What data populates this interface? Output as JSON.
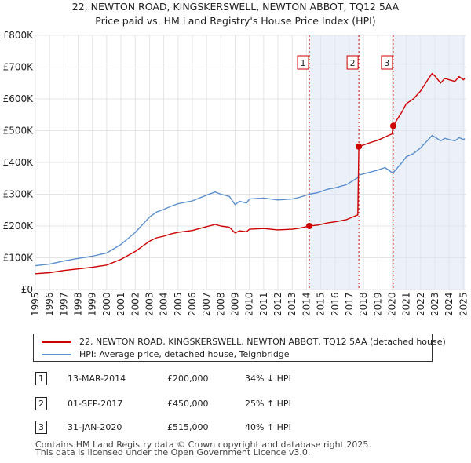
{
  "chart_data": {
    "type": "line",
    "title": "22, NEWTON ROAD, KINGSKERSWELL, NEWTON ABBOT, TQ12 5AA",
    "subtitle": "Price paid vs. HM Land Registry's House Price Index (HPI)",
    "xlabel": "",
    "ylabel": "",
    "xlim": [
      1995,
      2025.2
    ],
    "ylim": [
      0,
      800000
    ],
    "y_ticks": [
      {
        "value": 0,
        "label": "£0"
      },
      {
        "value": 100000,
        "label": "£100K"
      },
      {
        "value": 200000,
        "label": "£200K"
      },
      {
        "value": 300000,
        "label": "£300K"
      },
      {
        "value": 400000,
        "label": "£400K"
      },
      {
        "value": 500000,
        "label": "£500K"
      },
      {
        "value": 600000,
        "label": "£600K"
      },
      {
        "value": 700000,
        "label": "£700K"
      },
      {
        "value": 800000,
        "label": "£800K"
      }
    ],
    "x_ticks": [
      "1995",
      "1996",
      "1997",
      "1998",
      "1999",
      "2000",
      "2001",
      "2002",
      "2003",
      "2004",
      "2005",
      "2006",
      "2007",
      "2008",
      "2009",
      "2010",
      "2011",
      "2012",
      "2013",
      "2014",
      "2015",
      "2016",
      "2017",
      "2018",
      "2019",
      "2020",
      "2021",
      "2022",
      "2023",
      "2024",
      "2025"
    ],
    "grid": true,
    "series": [
      {
        "name": "22, NEWTON ROAD, KINGSKERSWELL, NEWTON ABBOT, TQ12 5AA (detached house)",
        "color": "#cc0000",
        "x": [
          1995,
          1996,
          1997,
          1998,
          1999,
          2000,
          2001,
          2002,
          2003,
          2003.5,
          2004,
          2004.5,
          2005,
          2006,
          2007,
          2007.6,
          2008,
          2008.6,
          2009,
          2009.3,
          2009.8,
          2010,
          2011,
          2012,
          2013,
          2013.5,
          2014.2,
          2014.8,
          2015.5,
          2016,
          2016.8,
          2017.6,
          2017.67,
          2018,
          2018.5,
          2019,
          2019.5,
          2020.0,
          2020.08,
          2020.7,
          2021,
          2021.5,
          2022,
          2022.5,
          2022.8,
          2023,
          2023.4,
          2023.7,
          2024,
          2024.4,
          2024.7,
          2025,
          2025.1
        ],
        "values": [
          50000,
          53000,
          60000,
          65000,
          70000,
          77000,
          95000,
          120000,
          152000,
          163000,
          168000,
          175000,
          180000,
          186000,
          198000,
          205000,
          200000,
          196000,
          178000,
          185000,
          182000,
          190000,
          192000,
          188000,
          190000,
          193000,
          200000,
          203000,
          210000,
          213000,
          220000,
          235000,
          450000,
          455000,
          463000,
          470000,
          480000,
          490000,
          515000,
          560000,
          585000,
          600000,
          625000,
          660000,
          680000,
          672000,
          650000,
          665000,
          660000,
          655000,
          670000,
          660000,
          665000
        ]
      },
      {
        "name": "HPI: Average price, detached house, Teignbridge",
        "color": "#5b8fcf",
        "x": [
          1995,
          1996,
          1997,
          1998,
          1999,
          2000,
          2001,
          2002,
          2003,
          2003.5,
          2004,
          2004.5,
          2005,
          2006,
          2007,
          2007.6,
          2008,
          2008.6,
          2009,
          2009.3,
          2009.8,
          2010,
          2011,
          2012,
          2013,
          2013.5,
          2014.2,
          2014.8,
          2015.5,
          2016,
          2016.8,
          2017.6,
          2017.67,
          2018,
          2018.5,
          2019,
          2019.5,
          2020.0,
          2020.08,
          2020.7,
          2021,
          2021.5,
          2022,
          2022.5,
          2022.8,
          2023,
          2023.4,
          2023.7,
          2024,
          2024.4,
          2024.7,
          2025,
          2025.1
        ],
        "values": [
          75000,
          80000,
          90000,
          98000,
          105000,
          115000,
          142000,
          180000,
          228000,
          244000,
          252000,
          262000,
          270000,
          279000,
          297000,
          307000,
          300000,
          293000,
          267000,
          278000,
          272000,
          285000,
          288000,
          282000,
          285000,
          290000,
          300000,
          305000,
          316000,
          320000,
          330000,
          352000,
          360000,
          364000,
          370000,
          376000,
          384000,
          368000,
          368000,
          400000,
          418000,
          428000,
          446000,
          470000,
          485000,
          480000,
          468000,
          476000,
          472000,
          468000,
          478000,
          472000,
          475000
        ]
      }
    ],
    "markers": [
      {
        "label": "1",
        "x": 2014.2,
        "value": 200000
      },
      {
        "label": "2",
        "x": 2017.67,
        "value": 450000
      },
      {
        "label": "3",
        "x": 2020.08,
        "value": 515000
      }
    ],
    "shaded_regions": [
      {
        "from": 2014.2,
        "to": 2017.67
      },
      {
        "from": 2020.08,
        "to": 2025.1
      }
    ]
  },
  "legend": {
    "items": [
      {
        "label": "22, NEWTON ROAD, KINGSKERSWELL, NEWTON ABBOT, TQ12 5AA (detached house)",
        "color": "#cc0000"
      },
      {
        "label": "HPI: Average price, detached house, Teignbridge",
        "color": "#5b8fcf"
      }
    ]
  },
  "transactions": [
    {
      "num": "1",
      "date": "13-MAR-2014",
      "price": "£200,000",
      "hpi": "34% ↓ HPI"
    },
    {
      "num": "2",
      "date": "01-SEP-2017",
      "price": "£450,000",
      "hpi": "25% ↑ HPI"
    },
    {
      "num": "3",
      "date": "31-JAN-2020",
      "price": "£515,000",
      "hpi": "40% ↑ HPI"
    }
  ],
  "footer": {
    "line1": "Contains HM Land Registry data © Crown copyright and database right 2025.",
    "line2": "This data is licensed under the Open Government Licence v3.0."
  }
}
